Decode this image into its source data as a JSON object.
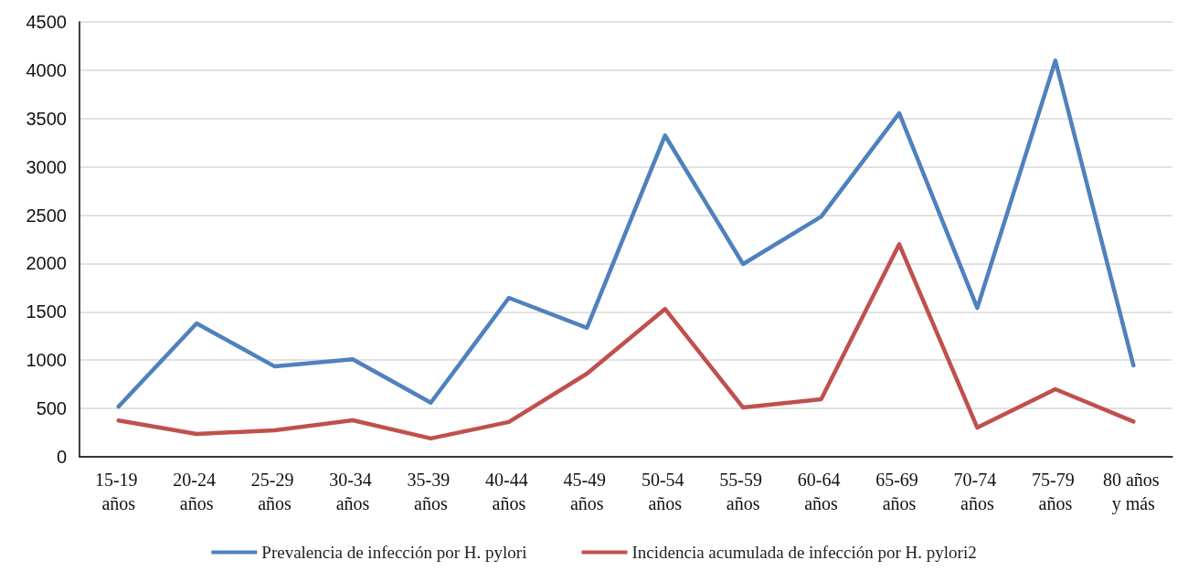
{
  "chart_data": {
    "type": "line",
    "categories": [
      "15-19 años",
      "20-24 años",
      "25-29 años",
      "30-34 años",
      "35-39 años",
      "40-44 años",
      "45-49 años",
      "50-54 años",
      "55-59 años",
      "60-64 años",
      "65-69 años",
      "70-74 años",
      "75-79 años",
      "80 años y más"
    ],
    "series": [
      {
        "name": "Prevalencia de infección por H. pylori",
        "color": "#4f81bd",
        "values": [
          520,
          1380,
          935,
          1010,
          560,
          1645,
          1335,
          3325,
          1995,
          2485,
          3555,
          1540,
          4100,
          945
        ]
      },
      {
        "name": "Incidencia acumulada de infección por H. pylori2",
        "color": "#c0504d",
        "values": [
          375,
          236,
          274,
          378,
          190,
          360,
          860,
          1530,
          510,
          595,
          2200,
          302,
          700,
          365
        ]
      }
    ],
    "ylim": [
      0,
      4500
    ],
    "yticks": [
      0,
      500,
      1000,
      1500,
      2000,
      2500,
      3000,
      3500,
      4000,
      4500
    ],
    "grid": "y",
    "legend": "bottom",
    "marker": "none",
    "line_style": "solid"
  }
}
